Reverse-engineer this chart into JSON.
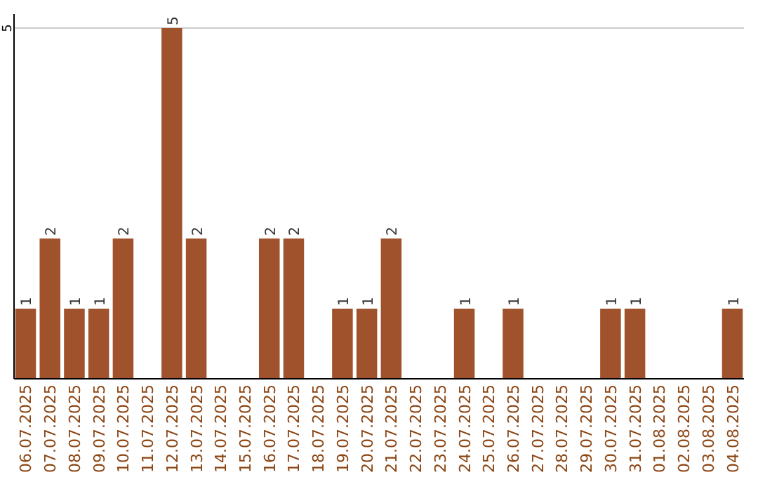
{
  "chart_data": {
    "type": "bar",
    "categories": [
      "06.07.2025",
      "07.07.2025",
      "08.07.2025",
      "09.07.2025",
      "10.07.2025",
      "11.07.2025",
      "12.07.2025",
      "13.07.2025",
      "14.07.2025",
      "15.07.2025",
      "16.07.2025",
      "17.07.2025",
      "18.07.2025",
      "19.07.2025",
      "20.07.2025",
      "21.07.2025",
      "22.07.2025",
      "23.07.2025",
      "24.07.2025",
      "25.07.2025",
      "26.07.2025",
      "27.07.2025",
      "28.07.2025",
      "29.07.2025",
      "30.07.2025",
      "31.07.2025",
      "01.08.2025",
      "02.08.2025",
      "03.08.2025",
      "04.08.2025"
    ],
    "values": [
      1,
      2,
      1,
      1,
      2,
      0,
      5,
      2,
      0,
      0,
      2,
      2,
      0,
      1,
      1,
      2,
      0,
      0,
      1,
      0,
      1,
      0,
      0,
      0,
      1,
      1,
      0,
      0,
      0,
      1
    ],
    "value_labels": [
      "1",
      "2",
      "1",
      "1",
      "2",
      null,
      "5",
      "2",
      null,
      null,
      "2",
      "2",
      null,
      "1",
      "1",
      "2",
      null,
      null,
      "1",
      null,
      "1",
      null,
      null,
      null,
      "1",
      "1",
      null,
      null,
      null,
      "1"
    ],
    "color": "#a0522d",
    "ylim": [
      0,
      5.2
    ],
    "yticks": [
      {
        "value": 0,
        "label": null
      },
      5
    ],
    "grid": "y"
  }
}
